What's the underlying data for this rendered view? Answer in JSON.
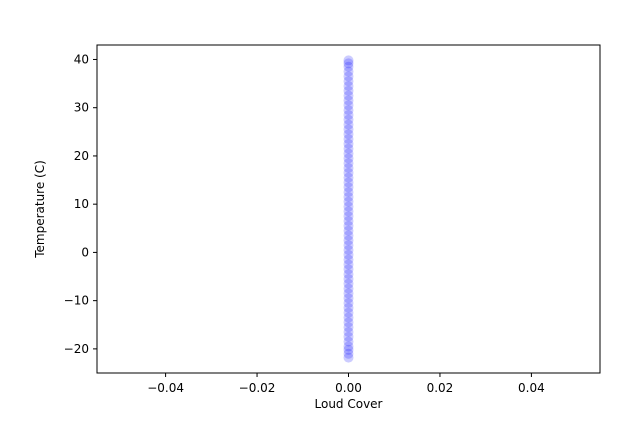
{
  "chart_data": {
    "type": "scatter",
    "title": "",
    "xlabel": "Loud Cover",
    "ylabel": "Temperature (C)",
    "xlim": [
      -0.055,
      0.055
    ],
    "ylim": [
      -25,
      43
    ],
    "xticks": [
      -0.04,
      -0.02,
      0.0,
      0.02,
      0.04
    ],
    "xtick_labels": [
      "−0.04",
      "−0.02",
      "0.00",
      "0.02",
      "0.04"
    ],
    "yticks": [
      -20,
      -10,
      0,
      10,
      20,
      30,
      40
    ],
    "ytick_labels": [
      "−20",
      "−10",
      "0",
      "10",
      "20",
      "30",
      "40"
    ],
    "grid": false,
    "legend": "none",
    "series": [
      {
        "color": "#0000ff",
        "alpha": 0.2,
        "x": [
          0,
          0,
          0,
          0,
          0,
          0,
          0,
          0,
          0,
          0,
          0,
          0,
          0,
          0,
          0,
          0,
          0,
          0,
          0,
          0,
          0,
          0,
          0,
          0,
          0,
          0,
          0,
          0,
          0,
          0,
          0,
          0,
          0,
          0,
          0,
          0,
          0,
          0,
          0,
          0,
          0,
          0,
          0,
          0,
          0,
          0,
          0,
          0,
          0,
          0,
          0,
          0,
          0,
          0,
          0,
          0,
          0,
          0,
          0,
          0,
          0,
          0,
          0,
          0
        ],
        "y": [
          -21.8,
          -21,
          -20.2,
          -19.5,
          -18.5,
          -17.5,
          -16.5,
          -15.5,
          -14.5,
          -13.5,
          -12.5,
          -11.5,
          -10.5,
          -9.5,
          -8.5,
          -7.5,
          -6.5,
          -5.5,
          -4.5,
          -3.5,
          -2.5,
          -1.5,
          -0.5,
          0.5,
          1.5,
          2.5,
          3.5,
          4.5,
          5.5,
          6.5,
          7.5,
          8.5,
          9.5,
          10.5,
          11.5,
          12.5,
          13.5,
          14.5,
          15.5,
          16.5,
          17.5,
          18.5,
          19.5,
          20.5,
          21.5,
          22.5,
          23.5,
          24.5,
          25.5,
          26.5,
          27.5,
          28.5,
          29.5,
          30.5,
          31.5,
          32.5,
          33.5,
          34.5,
          35.5,
          36.5,
          37.5,
          38.5,
          39.2,
          39.8
        ]
      }
    ]
  }
}
